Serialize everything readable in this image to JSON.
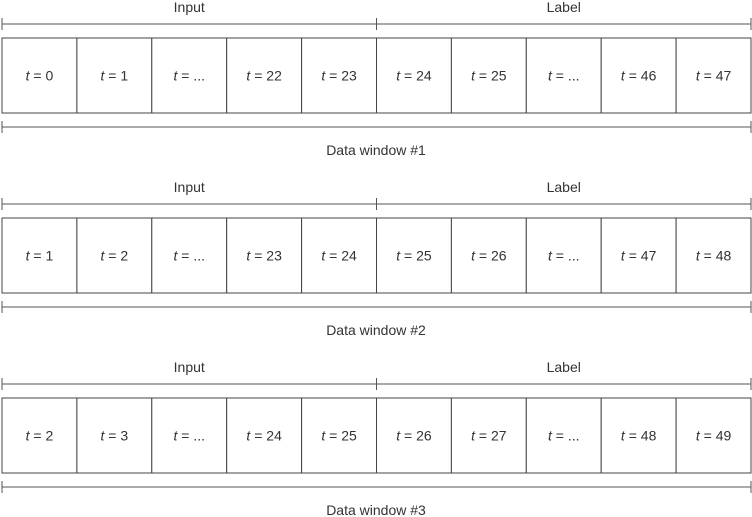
{
  "var_name": "t",
  "windows": [
    {
      "input_label": "Input",
      "label_label": "Label",
      "caption": "Data window #1",
      "cells": [
        "0",
        "1",
        "...",
        "22",
        "23",
        "24",
        "25",
        "...",
        "46",
        "47"
      ]
    },
    {
      "input_label": "Input",
      "label_label": "Label",
      "caption": "Data window #2",
      "cells": [
        "1",
        "2",
        "...",
        "23",
        "24",
        "25",
        "26",
        "...",
        "47",
        "48"
      ]
    },
    {
      "input_label": "Input",
      "label_label": "Label",
      "caption": "Data window #3",
      "cells": [
        "2",
        "3",
        "...",
        "24",
        "25",
        "26",
        "27",
        "...",
        "48",
        "49"
      ]
    }
  ],
  "colors": {
    "text": "#333333",
    "border": "#444444",
    "background": "#ffffff"
  }
}
